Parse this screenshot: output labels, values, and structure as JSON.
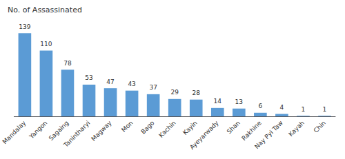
{
  "chart_data": {
    "type": "bar",
    "ylabel": "No. of Assassinated",
    "categories": [
      "Mandalay",
      "Yangon",
      "Sagaing",
      "Tanintharyi",
      "Magway",
      "Mon",
      "Bago",
      "Kachin",
      "Kayin",
      "Ayeyarwady",
      "Shan",
      "Rakhine",
      "Nay Pyi Taw",
      "Kayah",
      "Chin"
    ],
    "values": [
      139,
      110,
      78,
      53,
      47,
      43,
      37,
      29,
      28,
      14,
      13,
      6,
      4,
      1,
      1
    ],
    "color": "#5b9bd5",
    "ylim": [
      0,
      160
    ],
    "grid": false,
    "data_labels": true,
    "tick_labels": "x"
  }
}
